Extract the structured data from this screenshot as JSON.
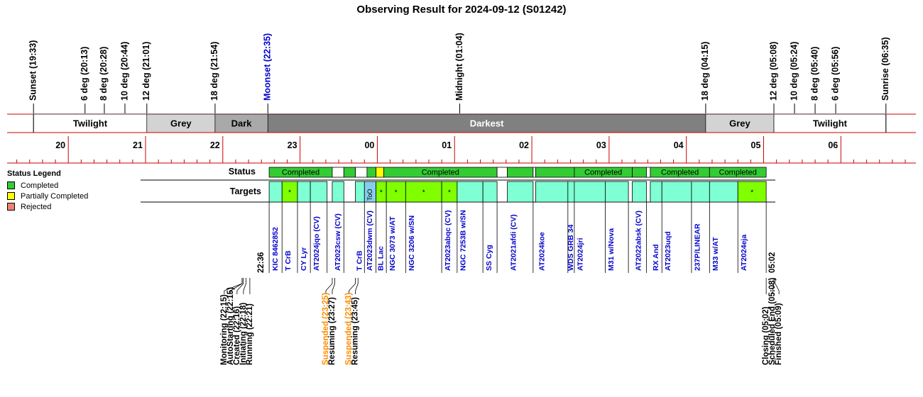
{
  "title": "Observing Result for 2024-09-12 (S01242)",
  "legend": {
    "heading": "Status Legend",
    "items": [
      {
        "label": "Completed",
        "color": "#33cc33"
      },
      {
        "label": "Partially Completed",
        "color": "#ffff00"
      },
      {
        "label": "Rejected",
        "color": "#f08070"
      }
    ]
  },
  "chart_data": {
    "type": "timeline",
    "x_start_time": "19:18",
    "x_end_time": "06:50",
    "hour_labels": [
      "20",
      "21",
      "22",
      "23",
      "00",
      "01",
      "02",
      "03",
      "04",
      "05",
      "06"
    ],
    "events": [
      {
        "label": "Sunset (19:33)",
        "time": "19:33",
        "color": "#000000"
      },
      {
        "label": "6 deg (20:13)",
        "time": "20:13",
        "color": "#000000"
      },
      {
        "label": "8 deg (20:28)",
        "time": "20:28",
        "color": "#000000"
      },
      {
        "label": "10 deg (20:44)",
        "time": "20:44",
        "color": "#000000"
      },
      {
        "label": "12 deg (21:01)",
        "time": "21:01",
        "color": "#000000"
      },
      {
        "label": "18 deg (21:54)",
        "time": "21:54",
        "color": "#000000"
      },
      {
        "label": "Moonset (22:35)",
        "time": "22:35",
        "color": "#0000cc"
      },
      {
        "label": "Midnight (01:04)",
        "time": "01:04",
        "color": "#000000"
      },
      {
        "label": "18 deg (04:15)",
        "time": "04:15",
        "color": "#000000"
      },
      {
        "label": "12 deg (05:08)",
        "time": "05:08",
        "color": "#000000"
      },
      {
        "label": "10 deg (05:24)",
        "time": "05:24",
        "color": "#000000"
      },
      {
        "label": "8 deg (05:40)",
        "time": "05:40",
        "color": "#000000"
      },
      {
        "label": "6 deg (05:56)",
        "time": "05:56",
        "color": "#000000"
      },
      {
        "label": "Sunrise (06:35)",
        "time": "06:35",
        "color": "#000000"
      }
    ],
    "sky_bands": [
      {
        "label": "Twilight",
        "start": "19:33",
        "end": "21:01",
        "color": "#ffffff",
        "text": "#000000"
      },
      {
        "label": "Grey",
        "start": "21:01",
        "end": "21:54",
        "color": "#d3d3d3",
        "text": "#000000"
      },
      {
        "label": "Dark",
        "start": "21:54",
        "end": "22:35",
        "color": "#a9a9a9",
        "text": "#000000"
      },
      {
        "label": "Darkest",
        "start": "22:35",
        "end": "04:15",
        "color": "#808080",
        "text": "#ffffff"
      },
      {
        "label": "Grey",
        "start": "04:15",
        "end": "05:08",
        "color": "#d3d3d3",
        "text": "#000000"
      },
      {
        "label": "Twilight",
        "start": "05:08",
        "end": "06:35",
        "color": "#ffffff",
        "text": "#000000"
      }
    ],
    "row_labels": {
      "status": "Status",
      "targets": "Targets"
    },
    "status_blocks": [
      {
        "start": "22:36",
        "end": "23:25",
        "label": "Completed",
        "color": "#33cc33"
      },
      {
        "start": "23:25",
        "end": "23:34",
        "label": "",
        "color": "#ffffff"
      },
      {
        "start": "23:34",
        "end": "23:43",
        "label": "",
        "color": "#33cc33"
      },
      {
        "start": "23:43",
        "end": "23:52",
        "label": "",
        "color": "#ffffff"
      },
      {
        "start": "23:52",
        "end": "23:59",
        "label": "",
        "color": "#33cc33"
      },
      {
        "start": "23:59",
        "end": "00:05",
        "label": "",
        "color": "#ffff00"
      },
      {
        "start": "00:05",
        "end": "01:33",
        "label": "Completed",
        "color": "#33cc33"
      },
      {
        "start": "01:33",
        "end": "01:41",
        "label": "",
        "color": "#ffffff"
      },
      {
        "start": "01:41",
        "end": "02:01",
        "label": "",
        "color": "#33cc33"
      },
      {
        "start": "02:01",
        "end": "02:03",
        "label": "",
        "color": "#ffffff"
      },
      {
        "start": "02:03",
        "end": "02:33",
        "label": "",
        "color": "#33cc33"
      },
      {
        "start": "02:33",
        "end": "03:18",
        "label": "Completed",
        "color": "#33cc33"
      },
      {
        "start": "03:18",
        "end": "03:29",
        "label": "",
        "color": "#33cc33"
      },
      {
        "start": "03:29",
        "end": "03:32",
        "label": "",
        "color": "#ffffff"
      },
      {
        "start": "03:32",
        "end": "04:18",
        "label": "Completed",
        "color": "#33cc33"
      },
      {
        "start": "04:18",
        "end": "05:02",
        "label": "Completed",
        "color": "#33cc33"
      }
    ],
    "targets": [
      {
        "name": "KIC 8462852",
        "start": "22:36",
        "end": "22:46",
        "color": "#7fffd4",
        "mark": ""
      },
      {
        "name": "T CrB",
        "start": "22:46",
        "end": "22:58",
        "color": "#7fff00",
        "mark": "*"
      },
      {
        "name": "CY Lyr",
        "start": "22:58",
        "end": "23:08",
        "color": "#7fffd4",
        "mark": ""
      },
      {
        "name": "AT2024jqo (CV)",
        "start": "23:08",
        "end": "23:21",
        "color": "#7fffd4",
        "mark": ""
      },
      {
        "name": "AT2023csw (CV)",
        "start": "23:25",
        "end": "23:34",
        "color": "#7fffd4",
        "mark": ""
      },
      {
        "name": "T CrB",
        "start": "23:43",
        "end": "23:50",
        "color": "#7fffd4",
        "mark": ""
      },
      {
        "name": "AT2023dwm (CV)",
        "start": "23:50",
        "end": "23:59",
        "color": "#87ceeb",
        "mark": "ToO"
      },
      {
        "name": "BL Lac",
        "start": "23:59",
        "end": "00:07",
        "color": "#7fff00",
        "mark": "*"
      },
      {
        "name": "NGC 3073 w/AT",
        "start": "00:07",
        "end": "00:22",
        "color": "#7fff00",
        "mark": "*"
      },
      {
        "name": "NGC 3206 w/SN",
        "start": "00:22",
        "end": "00:50",
        "color": "#7fff00",
        "mark": "*"
      },
      {
        "name": "AT2023abqc (CV)",
        "start": "00:50",
        "end": "01:02",
        "color": "#7fff00",
        "mark": "*"
      },
      {
        "name": "NGC 7253B w/SN",
        "start": "01:02",
        "end": "01:22",
        "color": "#7fffd4",
        "mark": ""
      },
      {
        "name": "SS Cyg",
        "start": "01:22",
        "end": "01:33",
        "color": "#7fffd4",
        "mark": ""
      },
      {
        "name": "AT2021afdi (CV)",
        "start": "01:41",
        "end": "02:01",
        "color": "#7fffd4",
        "mark": ""
      },
      {
        "name": "AT2024koe",
        "start": "02:03",
        "end": "02:28",
        "color": "#7fffd4",
        "mark": ""
      },
      {
        "name": "WDS GRB 34",
        "start": "02:28",
        "end": "02:33",
        "color": "#7fffd4",
        "mark": ""
      },
      {
        "name": "AT2024jri",
        "start": "02:33",
        "end": "02:57",
        "color": "#7fffd4",
        "mark": ""
      },
      {
        "name": "M31 w/Nova",
        "start": "02:57",
        "end": "03:15",
        "color": "#7fffd4",
        "mark": ""
      },
      {
        "name": "AT2022absk (CV)",
        "start": "03:18",
        "end": "03:29",
        "color": "#7fffd4",
        "mark": ""
      },
      {
        "name": "RX And",
        "start": "03:32",
        "end": "03:41",
        "color": "#7fffd4",
        "mark": ""
      },
      {
        "name": "AT2023uqd",
        "start": "03:41",
        "end": "04:04",
        "color": "#7fffd4",
        "mark": ""
      },
      {
        "name": "237P/LINEAR",
        "start": "04:04",
        "end": "04:18",
        "color": "#7fffd4",
        "mark": ""
      },
      {
        "name": "M33 w/AT",
        "start": "04:18",
        "end": "04:40",
        "color": "#7fffd4",
        "mark": ""
      },
      {
        "name": "AT2024eja",
        "start": "04:40",
        "end": "05:02",
        "color": "#7fff00",
        "mark": "*"
      }
    ],
    "start_label": "22:36",
    "end_label": "05:02",
    "log_groups": [
      {
        "anchor": "22:21",
        "entries": [
          {
            "label": "Monitoring (22:15)",
            "time": "22:15",
            "color": "#000000"
          },
          {
            "label": "AutoStarting (22:15)",
            "time": "22:15",
            "color": "#000000"
          },
          {
            "label": "Created (22:16)",
            "time": "22:16",
            "color": "#000000"
          },
          {
            "label": "Initiating (22:18)",
            "time": "22:18",
            "color": "#000000"
          },
          {
            "label": "Running (22:21)",
            "time": "22:21",
            "color": "#000000"
          }
        ]
      },
      {
        "anchor": "23:25",
        "entries": [
          {
            "label": "Suspended (23:25)",
            "time": "23:25",
            "color": "#ff8c00"
          },
          {
            "label": "Resuming (23:27)",
            "time": "23:27",
            "color": "#000000"
          }
        ]
      },
      {
        "anchor": "23:43",
        "entries": [
          {
            "label": "Suspended (23:43)",
            "time": "23:43",
            "color": "#ff8c00"
          },
          {
            "label": "Resuming (23:45)",
            "time": "23:45",
            "color": "#000000"
          }
        ]
      },
      {
        "anchor": "05:02",
        "entries": [
          {
            "label": "Closing (05:02)",
            "time": "05:02",
            "color": "#000000"
          },
          {
            "label": "Scheduled End (05:08)",
            "time": "05:08",
            "color": "#000000"
          },
          {
            "label": "Finished (05:09)",
            "time": "05:09",
            "color": "#000000"
          }
        ]
      }
    ]
  }
}
